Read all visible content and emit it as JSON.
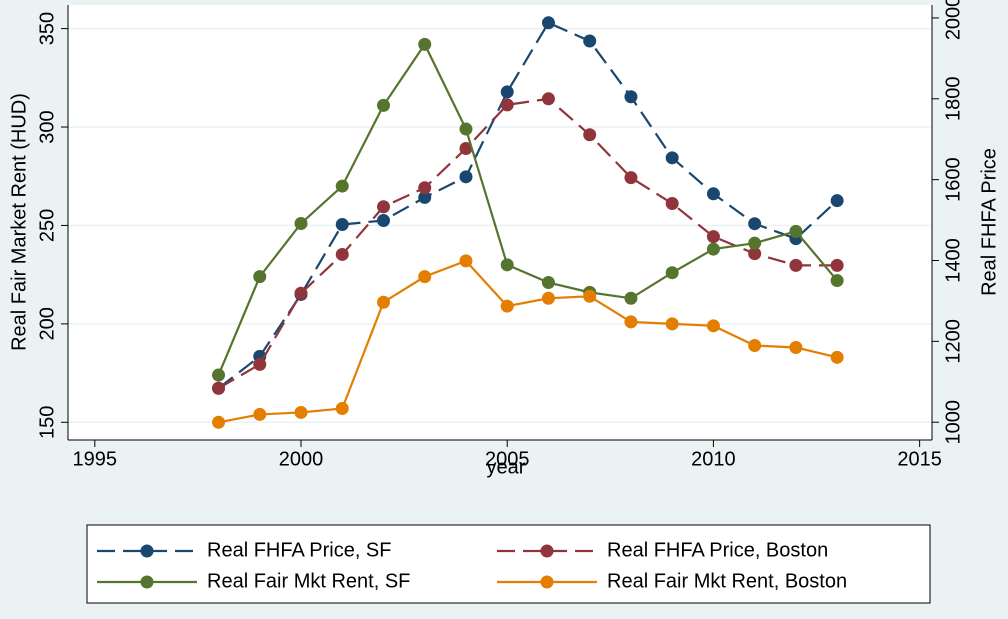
{
  "chart_data": {
    "type": "line",
    "xlabel": "year",
    "ylabel": "Real Fair Market Rent (HUD)",
    "y2label": "Real FHFA Price",
    "x": [
      1998,
      1999,
      2000,
      2001,
      2002,
      2003,
      2004,
      2005,
      2006,
      2007,
      2008,
      2009,
      2010,
      2011,
      2012,
      2013
    ],
    "xlim": [
      1994.35,
      2015.3
    ],
    "xticks": [
      1995,
      2000,
      2005,
      2010,
      2015
    ],
    "ylim": [
      141,
      362
    ],
    "yticks": [
      150,
      200,
      250,
      300,
      350
    ],
    "y2lim": [
      956,
      2032
    ],
    "y2ticks": [
      1000,
      1200,
      1400,
      1600,
      1800,
      2000
    ],
    "grid": true,
    "legend_position": "bottom",
    "series": [
      {
        "name": "Real FHFA Price, SF",
        "color": "#1a476f",
        "axis": "y2",
        "style": "dashed",
        "values": [
          1084,
          1163,
          1316,
          1489,
          1499,
          1556,
          1607,
          1817,
          1988,
          1943,
          1805,
          1654,
          1565,
          1491,
          1454,
          1548
        ]
      },
      {
        "name": "Real FHFA Price, Boston",
        "color": "#90353b",
        "axis": "y2",
        "style": "dashed",
        "values": [
          1084,
          1143,
          1319,
          1415,
          1533,
          1580,
          1677,
          1785,
          1800,
          1711,
          1605,
          1541,
          1459,
          1417,
          1388,
          1388
        ]
      },
      {
        "name": "Real Fair Mkt Rent, SF",
        "color": "#55752f",
        "axis": "y",
        "style": "solid",
        "values": [
          174,
          224,
          251,
          270,
          311,
          342,
          299,
          230,
          221,
          216,
          213,
          226,
          238,
          241,
          247,
          222
        ]
      },
      {
        "name": "Real Fair Mkt Rent, Boston",
        "color": "#e37e00",
        "axis": "y",
        "style": "solid",
        "values": [
          150,
          154,
          155,
          157,
          211,
          224,
          232,
          209,
          213,
          214,
          201,
          200,
          199,
          189,
          188,
          183
        ]
      }
    ]
  }
}
